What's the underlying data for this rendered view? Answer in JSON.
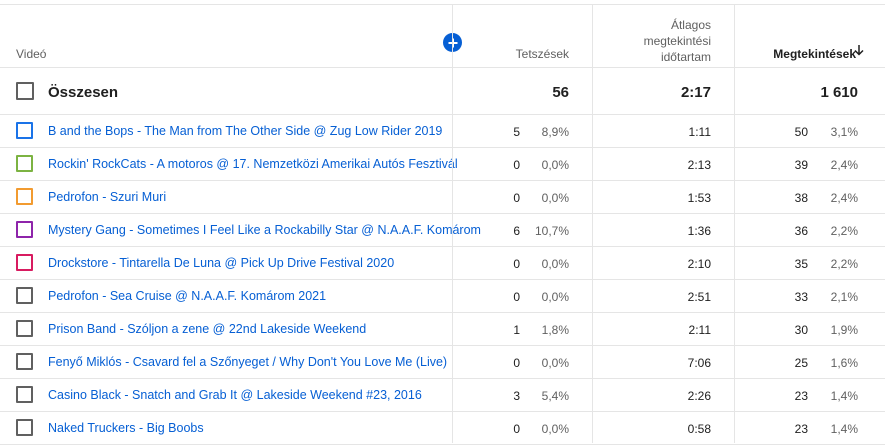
{
  "header": {
    "video": "Videó",
    "likes": "Tetszések",
    "avg_line1": "Átlagos",
    "avg_line2": "megtekintési",
    "avg_line3": "időtartam",
    "views": "Megtekintések"
  },
  "total": {
    "label": "Összesen",
    "likes": "56",
    "avg": "2:17",
    "views": "1 610"
  },
  "rows": [
    {
      "title": "B and the Bops - The Man from The Other Side @ Zug Low Rider 2019",
      "likes": "5",
      "likes_pct": "8,9%",
      "avg": "1:11",
      "views": "50",
      "views_pct": "3,1%",
      "color": "#1a73e8"
    },
    {
      "title": "Rockin' RockCats - A motoros @ 17. Nemzetközi Amerikai Autós Fesztivál",
      "likes": "0",
      "likes_pct": "0,0%",
      "avg": "2:13",
      "views": "39",
      "views_pct": "2,4%",
      "color": "#7cb342"
    },
    {
      "title": "Pedrofon - Szuri Muri",
      "likes": "0",
      "likes_pct": "0,0%",
      "avg": "1:53",
      "views": "38",
      "views_pct": "2,4%",
      "color": "#f29b30"
    },
    {
      "title": "Mystery Gang - Sometimes I Feel Like a Rockabilly Star @ N.A.A.F. Komárom",
      "likes": "6",
      "likes_pct": "10,7%",
      "avg": "1:36",
      "views": "36",
      "views_pct": "2,2%",
      "color": "#8e24aa"
    },
    {
      "title": "Drockstore - Tintarella De Luna @ Pick Up Drive Festival 2020",
      "likes": "0",
      "likes_pct": "0,0%",
      "avg": "2:10",
      "views": "35",
      "views_pct": "2,2%",
      "color": "#d81b60"
    },
    {
      "title": "Pedrofon - Sea Cruise @ N.A.A.F. Komárom 2021",
      "likes": "0",
      "likes_pct": "0,0%",
      "avg": "2:51",
      "views": "33",
      "views_pct": "2,1%",
      "color": "#606060"
    },
    {
      "title": "Prison Band - Szóljon a zene @ 22nd Lakeside Weekend",
      "likes": "1",
      "likes_pct": "1,8%",
      "avg": "2:11",
      "views": "30",
      "views_pct": "1,9%",
      "color": "#606060"
    },
    {
      "title": "Fenyő Miklós - Csavard fel a Szőnyeget / Why Don't You Love Me (Live)",
      "likes": "0",
      "likes_pct": "0,0%",
      "avg": "7:06",
      "views": "25",
      "views_pct": "1,6%",
      "color": "#606060"
    },
    {
      "title": "Casino Black - Snatch and Grab It @ Lakeside Weekend #23, 2016",
      "likes": "3",
      "likes_pct": "5,4%",
      "avg": "2:26",
      "views": "23",
      "views_pct": "1,4%",
      "color": "#606060"
    },
    {
      "title": "Naked Truckers - Big Boobs",
      "likes": "0",
      "likes_pct": "0,0%",
      "avg": "0:58",
      "views": "23",
      "views_pct": "1,4%",
      "color": "#606060"
    }
  ],
  "icons": {
    "add": "plus-circle-icon",
    "sort": "arrow-down-icon"
  }
}
